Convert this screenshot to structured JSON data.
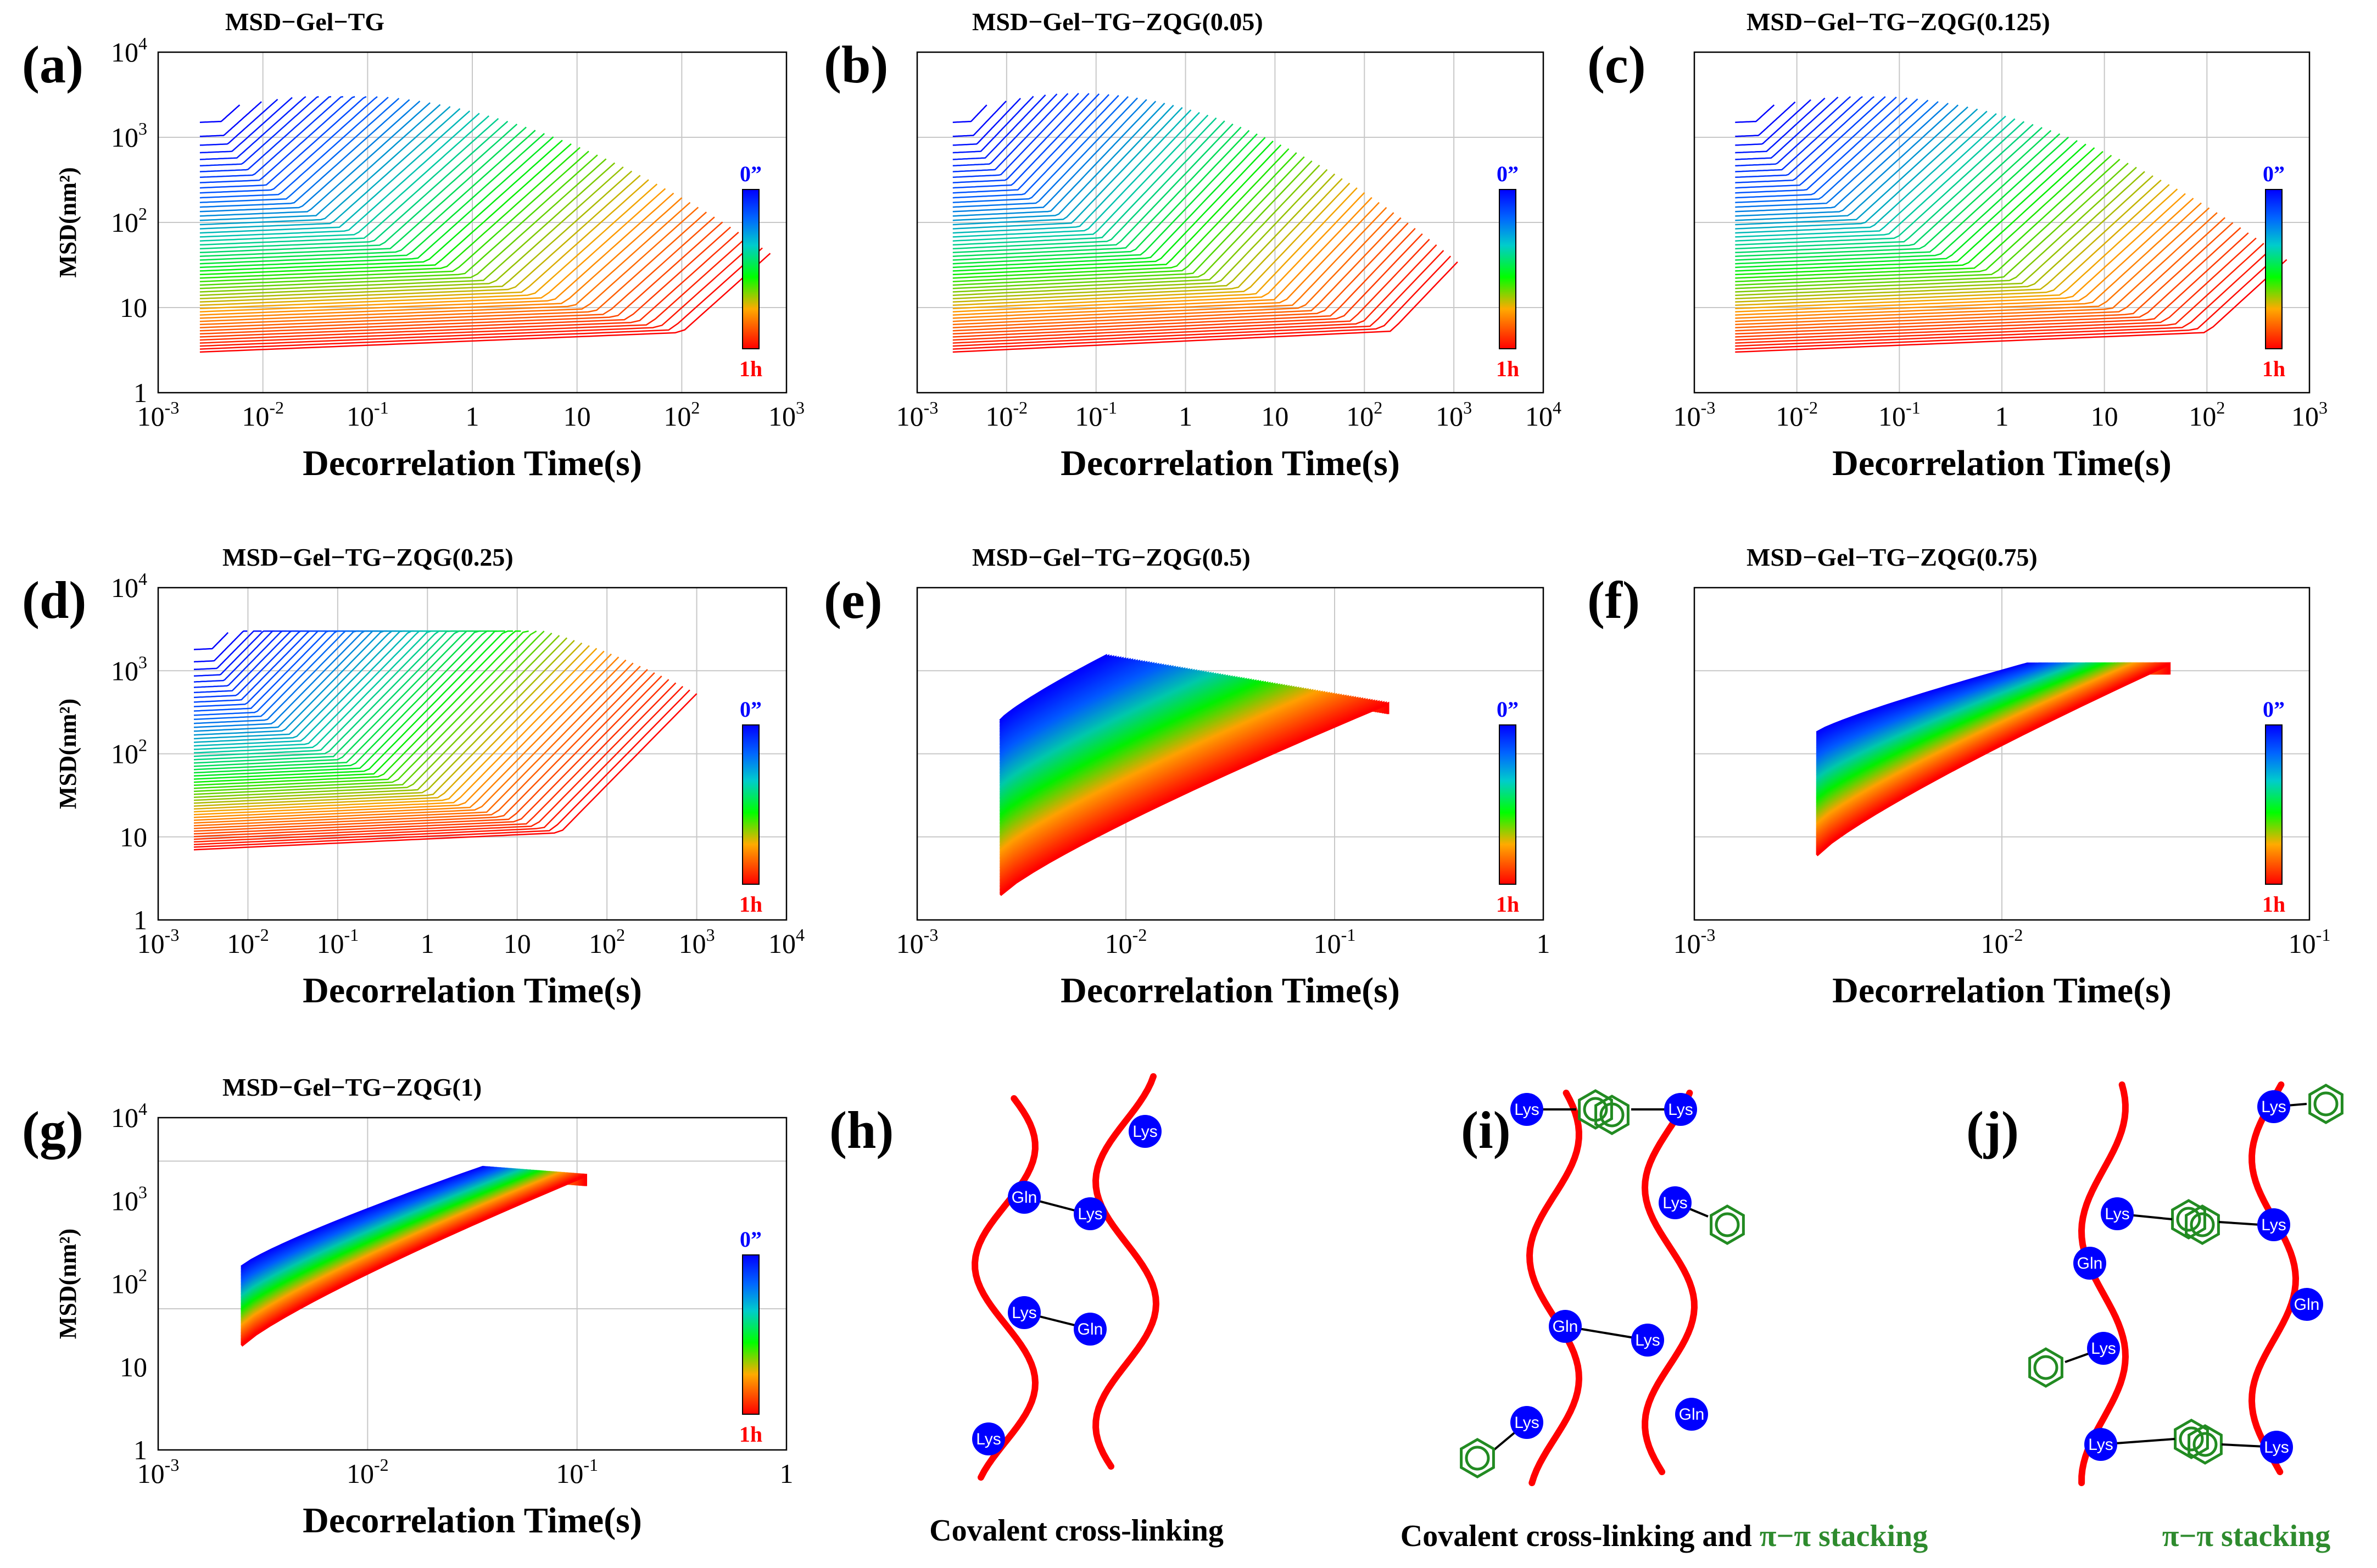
{
  "chart_data": [
    {
      "id": "a",
      "panel_label": "(a)",
      "type": "line",
      "title": "MSD−Gel−TG",
      "xlabel": "Decorrelation Time(s)",
      "ylabel": "MSD(nm²)",
      "x_scale": "log",
      "y_scale": "log",
      "xlim": [
        0.001,
        1000
      ],
      "ylim": [
        1,
        10000
      ],
      "xticks": [
        {
          "b": "10",
          "e": "-3"
        },
        {
          "b": "10",
          "e": "-2"
        },
        {
          "b": "10",
          "e": "-1"
        },
        {
          "b": "1",
          "e": ""
        },
        {
          "b": "10",
          "e": ""
        },
        {
          "b": "10",
          "e": "2"
        },
        {
          "b": "10",
          "e": "3"
        }
      ],
      "yticks": [
        {
          "b": "1",
          "e": ""
        },
        {
          "b": "10",
          "e": ""
        },
        {
          "b": "10",
          "e": "2"
        },
        {
          "b": "10",
          "e": "3"
        },
        {
          "b": "10",
          "e": "4"
        }
      ],
      "colorbar": {
        "top": "0”",
        "bottom": "1h",
        "colors": [
          "#0000ff",
          "#00ff00",
          "#ff0000"
        ]
      },
      "series_summary": {
        "x_start": 0.0025,
        "earliest_curves_plateau_msd": 1500,
        "late_curves_plateau_msd": 3,
        "late_curve_rise_onset_s": [
          0.3,
          100
        ],
        "final_msd": 2500,
        "max_time_s": 700
      }
    },
    {
      "id": "b",
      "panel_label": "(b)",
      "type": "line",
      "title": "MSD−Gel−TG−ZQG(0.05)",
      "xlabel": "Decorrelation Time(s)",
      "ylabel": "",
      "x_scale": "log",
      "y_scale": "log",
      "xlim": [
        0.001,
        10000
      ],
      "ylim": [
        1,
        10000
      ],
      "xticks": [
        {
          "b": "10",
          "e": "-3"
        },
        {
          "b": "10",
          "e": "-2"
        },
        {
          "b": "10",
          "e": "-1"
        },
        {
          "b": "1",
          "e": ""
        },
        {
          "b": "10",
          "e": ""
        },
        {
          "b": "10",
          "e": "2"
        },
        {
          "b": "10",
          "e": "3"
        },
        {
          "b": "10",
          "e": "4"
        }
      ],
      "yticks": [],
      "colorbar": {
        "top": "0”",
        "bottom": "1h",
        "colors": [
          "#0000ff",
          "#00ff00",
          "#ff0000"
        ]
      },
      "series_summary": {
        "x_start": 0.0025,
        "earliest_curves_plateau_msd": 1500,
        "late_curves_plateau_msd": 3,
        "late_curve_rise_onset_s": [
          1,
          200
        ],
        "final_msd": 3000,
        "max_time_s": 1100
      }
    },
    {
      "id": "c",
      "panel_label": "(c)",
      "type": "line",
      "title": "MSD−Gel−TG−ZQG(0.125)",
      "xlabel": "Decorrelation Time(s)",
      "ylabel": "",
      "x_scale": "log",
      "y_scale": "log",
      "xlim": [
        0.001,
        1000
      ],
      "ylim": [
        1,
        10000
      ],
      "xticks": [
        {
          "b": "10",
          "e": "-3"
        },
        {
          "b": "10",
          "e": "-2"
        },
        {
          "b": "10",
          "e": "-1"
        },
        {
          "b": "1",
          "e": ""
        },
        {
          "b": "10",
          "e": ""
        },
        {
          "b": "10",
          "e": "2"
        },
        {
          "b": "10",
          "e": "3"
        }
      ],
      "yticks": [],
      "colorbar": {
        "top": "0”",
        "bottom": "1h",
        "colors": [
          "#0000ff",
          "#00ff00",
          "#ff0000"
        ]
      },
      "series_summary": {
        "x_start": 0.0025,
        "earliest_curves_plateau_msd": 1500,
        "late_curves_plateau_msd": 3,
        "late_curve_rise_onset_s": [
          1,
          100
        ],
        "final_msd": 2500,
        "max_time_s": 600
      }
    },
    {
      "id": "d",
      "panel_label": "(d)",
      "type": "line",
      "title": "MSD−Gel−TG−ZQG(0.25)",
      "xlabel": "Decorrelation Time(s)",
      "ylabel": "MSD(nm²)",
      "x_scale": "log",
      "y_scale": "log",
      "xlim": [
        0.001,
        10000
      ],
      "ylim": [
        1,
        10000
      ],
      "xticks": [
        {
          "b": "10",
          "e": "-3"
        },
        {
          "b": "10",
          "e": "-2"
        },
        {
          "b": "10",
          "e": "-1"
        },
        {
          "b": "1",
          "e": ""
        },
        {
          "b": "10",
          "e": ""
        },
        {
          "b": "10",
          "e": "2"
        },
        {
          "b": "10",
          "e": "3"
        },
        {
          "b": "10",
          "e": "4"
        }
      ],
      "yticks": [
        {
          "b": "1",
          "e": ""
        },
        {
          "b": "10",
          "e": ""
        },
        {
          "b": "10",
          "e": "2"
        },
        {
          "b": "10",
          "e": "3"
        },
        {
          "b": "10",
          "e": "4"
        }
      ],
      "colorbar": {
        "top": "0”",
        "bottom": "1h",
        "colors": [
          "#0000ff",
          "#00ff00",
          "#ff0000"
        ]
      },
      "series_summary": {
        "x_start": 0.0025,
        "earliest_curves_plateau_msd": 1800,
        "late_curves_plateau_msd": 7,
        "late_curve_rise_onset_s": [
          10,
          30
        ],
        "final_msd": 2500,
        "max_time_s": 1000
      }
    },
    {
      "id": "e",
      "panel_label": "(e)",
      "type": "line",
      "title": "MSD−Gel−TG−ZQG(0.5)",
      "xlabel": "Decorrelation Time(s)",
      "ylabel": "",
      "x_scale": "log",
      "y_scale": "log",
      "xlim": [
        0.001,
        1
      ],
      "ylim": [
        1,
        10000
      ],
      "xticks": [
        {
          "b": "10",
          "e": "-3"
        },
        {
          "b": "10",
          "e": "-2"
        },
        {
          "b": "10",
          "e": "-1"
        },
        {
          "b": "1",
          "e": ""
        }
      ],
      "yticks": [],
      "colorbar": {
        "top": "0”",
        "bottom": "1h",
        "colors": [
          "#0000ff",
          "#00ff00",
          "#ff0000"
        ]
      },
      "series_summary": {
        "x_start": 0.0025,
        "earliest_curves_start_msd": 250,
        "latest_curves_start_msd": 2,
        "earliest_curves_end": {
          "x": 0.008,
          "msd": 1500
        },
        "latest_curves_end": {
          "x": 0.18,
          "msd": 400
        }
      }
    },
    {
      "id": "f",
      "panel_label": "(f)",
      "type": "line",
      "title": "MSD−Gel−TG−ZQG(0.75)",
      "xlabel": "Decorrelation Time(s)",
      "ylabel": "",
      "x_scale": "log",
      "y_scale": "log",
      "xlim": [
        0.001,
        0.1
      ],
      "ylim": [
        1,
        10000
      ],
      "xticks": [
        {
          "b": "10",
          "e": "-3"
        },
        {
          "b": "10",
          "e": "-2"
        },
        {
          "b": "10",
          "e": "-1"
        }
      ],
      "yticks": [],
      "colorbar": {
        "top": "0”",
        "bottom": "1h",
        "colors": [
          "#0000ff",
          "#00ff00",
          "#ff0000"
        ]
      },
      "series_summary": {
        "x_start": 0.0025,
        "earliest_curves_start_msd": 180,
        "latest_curves_start_msd": 6,
        "earliest_curves_end": {
          "x": 0.012,
          "msd": 1200
        },
        "latest_curves_end": {
          "x": 0.035,
          "msd": 1200
        }
      }
    },
    {
      "id": "g",
      "panel_label": "(g)",
      "type": "line",
      "title": "MSD−Gel−TG−ZQG(1)",
      "xlabel": "Decorrelation Time(s)",
      "ylabel": "MSD(nm²)",
      "x_scale": "log",
      "y_scale": "log",
      "xlim": [
        0.001,
        1
      ],
      "ylim": [
        1,
        10000
      ],
      "xticks": [
        {
          "b": "10",
          "e": "-3"
        },
        {
          "b": "10",
          "e": "-2"
        },
        {
          "b": "10",
          "e": "-1"
        },
        {
          "b": "1",
          "e": ""
        }
      ],
      "yticks": [
        {
          "b": "1",
          "e": ""
        },
        {
          "b": "10",
          "e": ""
        },
        {
          "b": "10",
          "e": "2"
        },
        {
          "b": "10",
          "e": "3"
        },
        {
          "b": "10",
          "e": "4"
        }
      ],
      "colorbar": {
        "top": "0”",
        "bottom": "1h",
        "colors": [
          "#0000ff",
          "#00ff00",
          "#ff0000"
        ]
      },
      "series_summary": {
        "x_start": 0.0025,
        "earliest_curves_start_msd": 160,
        "latest_curves_start_msd": 18,
        "earliest_curves_end": {
          "x": 0.035,
          "msd": 2500
        },
        "latest_curves_end": {
          "x": 0.11,
          "msd": 2000
        }
      }
    }
  ],
  "schematics": [
    {
      "id": "h",
      "panel_label": "(h)",
      "caption_parts": [
        {
          "text": "Covalent cross-linking",
          "color": "#000000"
        }
      ],
      "residue_labels": [
        "Lys",
        "Gln",
        "Lys",
        "Lys",
        "Gln",
        "Lys"
      ],
      "chain_color": "#ff0000",
      "residue_color": "#0000ff",
      "ring_color": "#228b22"
    },
    {
      "id": "i",
      "panel_label": "(i)",
      "caption_parts": [
        {
          "text": "Covalent cross-linking and ",
          "color": "#000000"
        },
        {
          "text": "π−π stacking",
          "color": "#2e8b2e"
        }
      ],
      "residue_labels": [
        "Lys",
        "Lys",
        "Lys",
        "Gln",
        "Lys",
        "Lys",
        "Gln"
      ],
      "chain_color": "#ff0000",
      "residue_color": "#0000ff",
      "ring_color": "#228b22"
    },
    {
      "id": "j",
      "panel_label": "(j)",
      "caption_parts": [
        {
          "text": "π−π stacking",
          "color": "#2e8b2e"
        }
      ],
      "residue_labels": [
        "Lys",
        "Lys",
        "Lys",
        "Gln",
        "Gln",
        "Lys",
        "Lys",
        "Lys"
      ],
      "chain_color": "#ff0000",
      "residue_color": "#0000ff",
      "ring_color": "#228b22"
    }
  ]
}
